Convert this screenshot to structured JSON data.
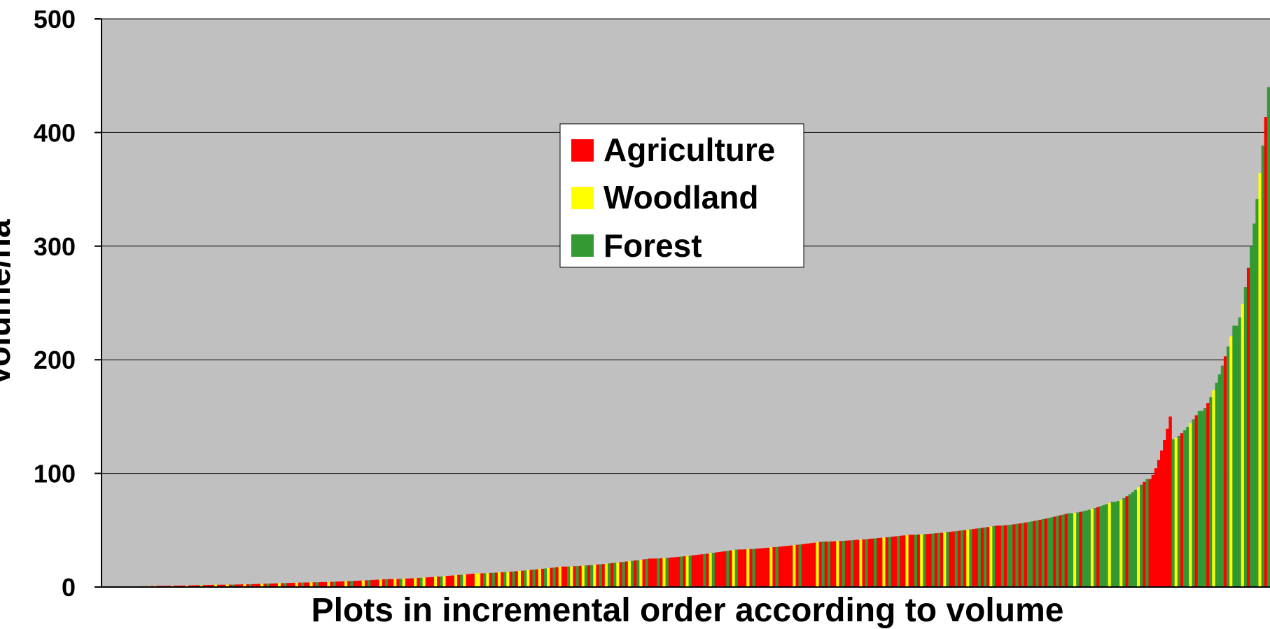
{
  "chart_data": {
    "type": "bar",
    "title": "",
    "xlabel": "Plots in incremental order according to volume",
    "ylabel": "Volume/ha",
    "ylim": [
      0,
      500
    ],
    "yticks": [
      0,
      100,
      200,
      300,
      400,
      500
    ],
    "ytick_labels": [
      "0",
      "100",
      "200",
      "300",
      "400",
      "500"
    ],
    "grid": "horizontal",
    "legend_position": "top-center",
    "series": [
      {
        "name": "Agriculture",
        "color": "#ff0000"
      },
      {
        "name": "Woodland",
        "color": "#ffff00"
      },
      {
        "name": "Forest",
        "color": "#339933"
      }
    ],
    "plot_background": "#c0c0c0",
    "bars": [
      {
        "count": 12,
        "start": 0.5,
        "end": 1,
        "class": "Agriculture",
        "pattern": [
          "Agriculture",
          "Agriculture",
          "Woodland",
          "Agriculture",
          "Woodland",
          "Agriculture"
        ]
      },
      {
        "count": 20,
        "start": 1,
        "end": 2,
        "pattern": [
          "Agriculture",
          "Agriculture",
          "Agriculture",
          "Agriculture",
          "Woodland"
        ]
      },
      {
        "count": 30,
        "start": 2,
        "end": 4,
        "pattern": [
          "Agriculture",
          "Agriculture",
          "Agriculture",
          "Woodland",
          "Agriculture",
          "Forest"
        ]
      },
      {
        "count": 30,
        "start": 4,
        "end": 7,
        "pattern": [
          "Agriculture",
          "Agriculture",
          "Woodland",
          "Agriculture",
          "Forest",
          "Agriculture"
        ]
      },
      {
        "count": 30,
        "start": 7,
        "end": 12,
        "pattern": [
          "Agriculture",
          "Woodland",
          "Agriculture",
          "Forest",
          "Woodland",
          "Agriculture",
          "Agriculture"
        ]
      },
      {
        "count": 30,
        "start": 12,
        "end": 18,
        "pattern": [
          "Woodland",
          "Agriculture",
          "Forest",
          "Woodland",
          "Agriculture",
          "Forest",
          "Agriculture"
        ]
      },
      {
        "count": 30,
        "start": 18,
        "end": 25,
        "pattern": [
          "Agriculture",
          "Forest",
          "Woodland",
          "Agriculture",
          "Forest",
          "Agriculture",
          "Woodland",
          "Forest"
        ]
      },
      {
        "count": 30,
        "start": 25,
        "end": 33,
        "pattern": [
          "Agriculture",
          "Agriculture",
          "Forest",
          "Agriculture",
          "Woodland",
          "Forest",
          "Agriculture",
          "Agriculture"
        ]
      },
      {
        "count": 30,
        "start": 33,
        "end": 40,
        "pattern": [
          "Agriculture",
          "Agriculture",
          "Agriculture",
          "Woodland",
          "Agriculture",
          "Forest",
          "Agriculture",
          "Agriculture"
        ]
      },
      {
        "count": 30,
        "start": 40,
        "end": 46,
        "pattern": [
          "Agriculture",
          "Forest",
          "Agriculture",
          "Agriculture",
          "Woodland",
          "Agriculture",
          "Forest",
          "Agriculture"
        ]
      },
      {
        "count": 30,
        "start": 46,
        "end": 54,
        "pattern": [
          "Agriculture",
          "Forest",
          "Agriculture",
          "Woodland",
          "Forest",
          "Agriculture",
          "Agriculture",
          "Forest"
        ]
      },
      {
        "count": 25,
        "start": 54,
        "end": 65,
        "pattern": [
          "Agriculture",
          "Forest",
          "Agriculture",
          "Forest",
          "Forest",
          "Agriculture",
          "Forest"
        ]
      },
      {
        "count": 15,
        "start": 65,
        "end": 75,
        "pattern": [
          "Forest",
          "Woodland",
          "Forest",
          "Agriculture",
          "Forest",
          "Forest"
        ]
      },
      {
        "count": 12,
        "start": 75,
        "end": 95,
        "pattern": [
          "Forest",
          "Forest",
          "Woodland",
          "Forest",
          "Agriculture",
          "Forest"
        ]
      },
      {
        "count": 8,
        "start": 95,
        "end": 150,
        "pattern": [
          "Agriculture",
          "Agriculture",
          "Agriculture",
          "Agriculture"
        ]
      },
      {
        "count": 10,
        "start": 130,
        "end": 155,
        "pattern": [
          "Forest",
          "Woodland",
          "Forest",
          "Agriculture",
          "Forest"
        ]
      },
      {
        "count": 12,
        "start": 155,
        "end": 230,
        "pattern": [
          "Forest",
          "Forest",
          "Agriculture",
          "Forest",
          "Woodland",
          "Forest"
        ]
      },
      {
        "count": 12,
        "start": 230,
        "end": 440,
        "pattern": [
          "Forest",
          "Forest",
          "Woodland",
          "Forest",
          "Agriculture",
          "Forest"
        ]
      }
    ]
  }
}
